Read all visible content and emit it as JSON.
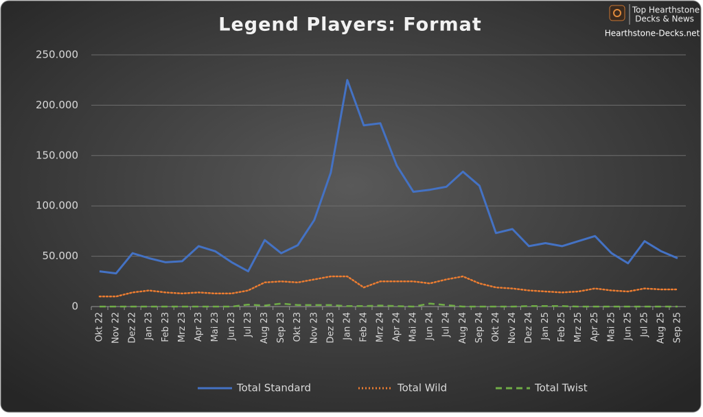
{
  "chart_data": {
    "type": "line",
    "title": "Legend Players: Format",
    "categories": [
      "Okt 22",
      "Nov 22",
      "Dez 22",
      "Jan 23",
      "Feb 23",
      "Mrz 23",
      "Apr 23",
      "Mai 23",
      "Jun 23",
      "Jul 23",
      "Aug 23",
      "Sep 23",
      "Okt 23",
      "Nov 23",
      "Dez 23",
      "Jan 24",
      "Feb 24",
      "Mrz 24",
      "Apr 24",
      "Mai 24",
      "Jun 24",
      "Jul 24",
      "Aug 24",
      "Sep 24",
      "Okt 24",
      "Nov 24",
      "Dez 24",
      "Jan 25",
      "Feb 25",
      "Mrz 25",
      "Apr 25",
      "Mai 25",
      "Jun 25",
      "Jul 25",
      "Aug 25",
      "Sep 25"
    ],
    "series": [
      {
        "name": "Total Standard",
        "color": "#4472c4",
        "dash": "solid",
        "values": [
          35000,
          33000,
          53000,
          48000,
          44000,
          45000,
          60000,
          55000,
          44000,
          35000,
          66000,
          53000,
          61000,
          86000,
          133000,
          225000,
          180000,
          182000,
          140000,
          114000,
          116000,
          119000,
          134000,
          120000,
          73000,
          77000,
          60000,
          63000,
          60000,
          65000,
          70000,
          53000,
          43000,
          65000,
          55000,
          48000
        ]
      },
      {
        "name": "Total Wild",
        "color": "#ed7d31",
        "dash": "dotted",
        "values": [
          10000,
          10000,
          14000,
          16000,
          14000,
          13000,
          14000,
          13000,
          13000,
          16000,
          24000,
          25000,
          24000,
          27000,
          30000,
          30000,
          19000,
          25000,
          25000,
          25000,
          23000,
          27000,
          30000,
          23000,
          19000,
          18000,
          16000,
          15000,
          14000,
          15000,
          18000,
          16000,
          15000,
          18000,
          17000,
          17000
        ]
      },
      {
        "name": "Total Twist",
        "color": "#70ad47",
        "dash": "dashed",
        "values": [
          0,
          0,
          0,
          0,
          0,
          0,
          0,
          0,
          0,
          2000,
          1000,
          3000,
          1500,
          1500,
          1500,
          500,
          500,
          1000,
          500,
          0,
          3000,
          1500,
          0,
          0,
          0,
          0,
          500,
          500,
          500,
          0,
          0,
          0,
          0,
          0,
          0,
          0
        ]
      }
    ],
    "ylim": [
      0,
      250000
    ],
    "yticks": [
      0,
      {
        "value": 50000,
        "label": "50.000"
      },
      {
        "value": 100000,
        "label": "100.000"
      },
      {
        "value": 150000,
        "label": "150.000"
      },
      {
        "value": 200000,
        "label": "200.000"
      },
      {
        "value": 250000,
        "label": "250.000"
      }
    ],
    "grid": true,
    "legend": "bottom"
  },
  "watermark": {
    "line1": "Top Hearthstone",
    "line2": "Decks & News",
    "site": "Hearthstone-Decks.net"
  }
}
